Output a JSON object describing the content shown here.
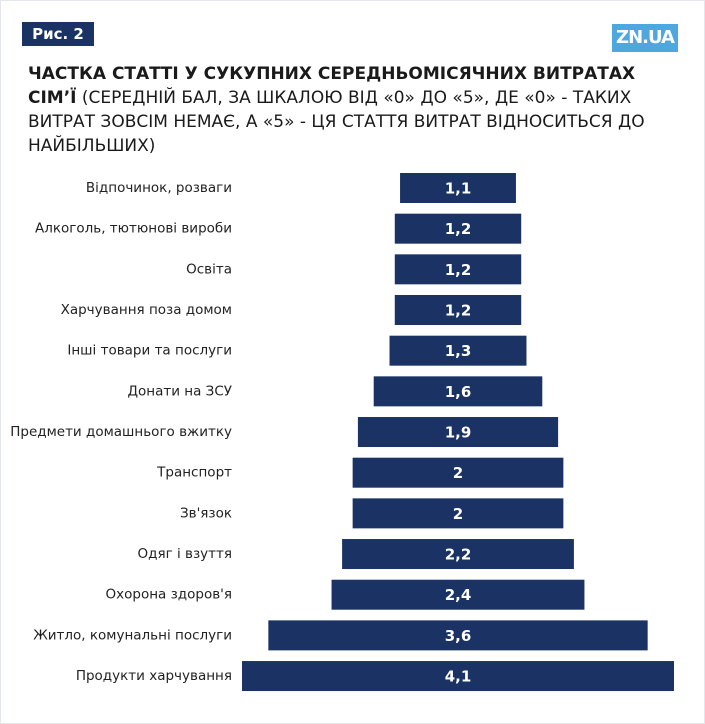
{
  "header": {
    "figure_label": "Рис. 2",
    "logo": "ZN.UA"
  },
  "chart_data": {
    "type": "bar",
    "orientation": "horizontal-centered",
    "title": "ЧАСТКА СТАТТІ У СУКУПНИХ СЕРЕДНЬОМІСЯЧНИХ ВИТРАТАХ СІМ’Ї",
    "subtitle": "(СЕРЕДНІЙ БАЛ, ЗА ШКАЛОЮ ВІД «0» ДО «5», ДЕ «0» - ТАКИХ ВИТРАТ ЗОВСІМ НЕМАЄ, А «5» - ЦЯ СТАТТЯ ВИТРАТ ВІДНОСИТЬСЯ ДО НАЙБІЛЬШИХ)",
    "categories": [
      "Відпочинок, розваги",
      "Алкоголь, тютюнові вироби",
      "Освіта",
      "Харчування поза домом",
      "Інші товари та послуги",
      "Донати на ЗСУ",
      "Предмети домашнього вжитку",
      "Транспорт",
      "Зв'язок",
      "Одяг і взуття",
      "Охорона здоров'я",
      "Житло, комунальні послуги",
      "Продукти харчування"
    ],
    "values": [
      1.1,
      1.2,
      1.2,
      1.2,
      1.3,
      1.6,
      1.9,
      2,
      2,
      2.2,
      2.4,
      3.6,
      4.1
    ],
    "value_labels": [
      "1,1",
      "1,2",
      "1,2",
      "1,2",
      "1,3",
      "1,6",
      "1,9",
      "2",
      "2",
      "2,2",
      "2,4",
      "3,6",
      "4,1"
    ],
    "color": "#1b3264"
  }
}
